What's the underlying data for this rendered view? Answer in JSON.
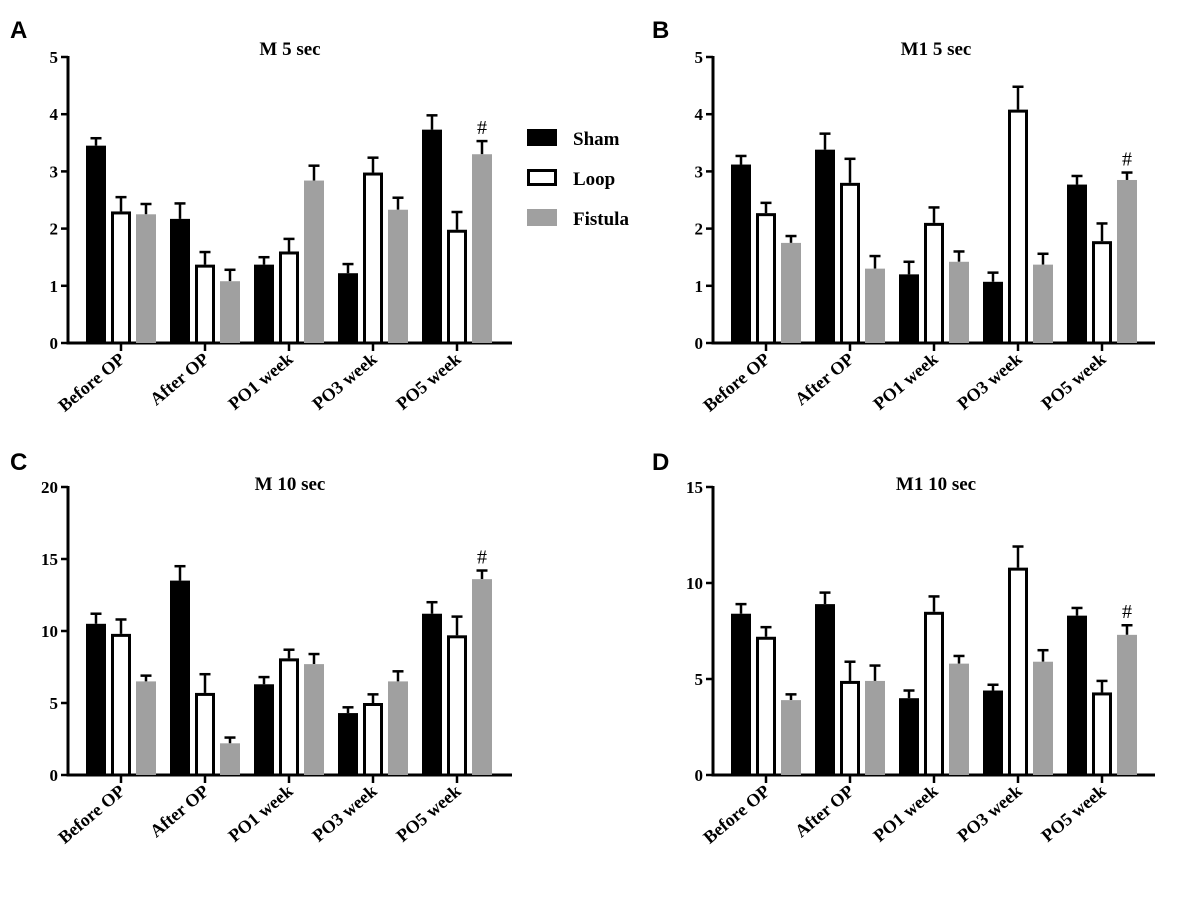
{
  "colors": {
    "Sham": "#000000",
    "Loop": "#ffffff",
    "Fistula": "#a0a0a0"
  },
  "legend": {
    "entries": [
      {
        "series": "Sham",
        "label": "Sham"
      },
      {
        "series": "Loop",
        "label": "Loop"
      },
      {
        "series": "Fistula",
        "label": "Fistula"
      }
    ]
  },
  "chart_data": [
    {
      "panel": "A",
      "type": "bar",
      "title": "M 5 sec",
      "categories": [
        "Before OP",
        "After OP",
        "PO1 week",
        "PO3 week",
        "PO5 week"
      ],
      "ylim": [
        0,
        5
      ],
      "yticks": [
        0,
        1,
        2,
        3,
        4,
        5
      ],
      "series": [
        {
          "name": "Sham",
          "values": [
            3.45,
            2.17,
            1.37,
            1.22,
            3.73
          ],
          "errors": [
            0.13,
            0.27,
            0.13,
            0.16,
            0.25
          ]
        },
        {
          "name": "Loop",
          "values": [
            2.3,
            1.37,
            1.6,
            2.98,
            1.98
          ],
          "errors": [
            0.25,
            0.22,
            0.22,
            0.26,
            0.31
          ]
        },
        {
          "name": "Fistula",
          "values": [
            2.25,
            1.08,
            2.84,
            2.33,
            3.3
          ],
          "errors": [
            0.18,
            0.2,
            0.26,
            0.21,
            0.23
          ]
        }
      ],
      "annotations": [
        {
          "text": "#",
          "category": "PO5 week",
          "series": "Fistula"
        }
      ]
    },
    {
      "panel": "B",
      "type": "bar",
      "title": "M1 5 sec",
      "categories": [
        "Before OP",
        "After OP",
        "PO1 week",
        "PO3 week",
        "PO5 week"
      ],
      "ylim": [
        0,
        5
      ],
      "yticks": [
        0,
        1,
        2,
        3,
        4,
        5
      ],
      "series": [
        {
          "name": "Sham",
          "values": [
            3.12,
            3.38,
            1.2,
            1.07,
            2.77
          ],
          "errors": [
            0.15,
            0.28,
            0.22,
            0.16,
            0.15
          ]
        },
        {
          "name": "Loop",
          "values": [
            2.27,
            2.8,
            2.1,
            4.08,
            1.78
          ],
          "errors": [
            0.18,
            0.42,
            0.27,
            0.4,
            0.31
          ]
        },
        {
          "name": "Fistula",
          "values": [
            1.75,
            1.3,
            1.42,
            1.37,
            2.85
          ],
          "errors": [
            0.12,
            0.22,
            0.18,
            0.19,
            0.13
          ]
        }
      ],
      "annotations": [
        {
          "text": "#",
          "category": "PO5 week",
          "series": "Fistula"
        }
      ]
    },
    {
      "panel": "C",
      "type": "bar",
      "title": "M 10 sec",
      "categories": [
        "Before OP",
        "After OP",
        "PO1 week",
        "PO3 week",
        "PO5 week"
      ],
      "ylim": [
        0,
        20
      ],
      "yticks": [
        0,
        5,
        10,
        15,
        20
      ],
      "series": [
        {
          "name": "Sham",
          "values": [
            10.5,
            13.5,
            6.3,
            4.3,
            11.2
          ],
          "errors": [
            0.7,
            1.0,
            0.5,
            0.4,
            0.8
          ]
        },
        {
          "name": "Loop",
          "values": [
            9.8,
            5.7,
            8.1,
            5.0,
            9.7
          ],
          "errors": [
            1.0,
            1.3,
            0.6,
            0.6,
            1.3
          ]
        },
        {
          "name": "Fistula",
          "values": [
            6.5,
            2.2,
            7.7,
            6.5,
            13.6
          ],
          "errors": [
            0.4,
            0.4,
            0.7,
            0.7,
            0.6
          ]
        }
      ],
      "annotations": [
        {
          "text": "#",
          "category": "PO5 week",
          "series": "Fistula"
        }
      ]
    },
    {
      "panel": "D",
      "type": "bar",
      "title": "M1 10 sec",
      "categories": [
        "Before OP",
        "After OP",
        "PO1 week",
        "PO3 week",
        "PO5 week"
      ],
      "ylim": [
        0,
        15
      ],
      "yticks": [
        0,
        5,
        10,
        15
      ],
      "series": [
        {
          "name": "Sham",
          "values": [
            8.4,
            8.9,
            4.0,
            4.4,
            8.3
          ],
          "errors": [
            0.5,
            0.6,
            0.4,
            0.3,
            0.4
          ]
        },
        {
          "name": "Loop",
          "values": [
            7.2,
            4.9,
            8.5,
            10.8,
            4.3
          ],
          "errors": [
            0.5,
            1.0,
            0.8,
            1.1,
            0.6
          ]
        },
        {
          "name": "Fistula",
          "values": [
            3.9,
            4.9,
            5.8,
            5.9,
            7.3
          ],
          "errors": [
            0.3,
            0.8,
            0.4,
            0.6,
            0.5
          ]
        }
      ],
      "annotations": [
        {
          "text": "#",
          "category": "PO5 week",
          "series": "Fistula"
        }
      ]
    }
  ]
}
